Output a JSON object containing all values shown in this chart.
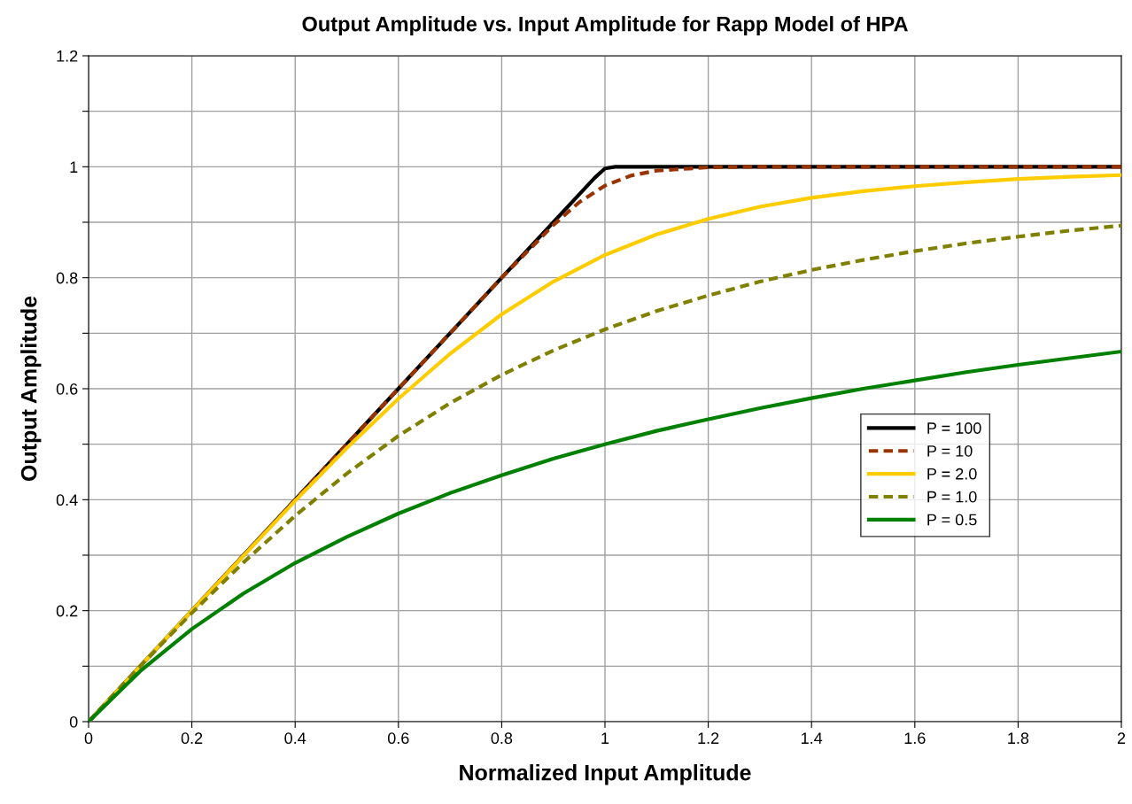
{
  "chart_data": {
    "type": "line",
    "title": "Output Amplitude vs. Input Amplitude for Rapp Model of HPA",
    "xlabel": "Normalized Input Amplitude",
    "ylabel": "Output Amplitude",
    "xlim": [
      0,
      2
    ],
    "xticks": [
      0,
      0.2,
      0.4,
      0.6,
      0.8,
      1,
      1.2,
      1.4,
      1.6,
      1.8,
      2
    ],
    "ylim": [
      0,
      1.2
    ],
    "yticks": [
      0,
      {
        "value": 0.1,
        "label": null
      },
      0.2,
      {
        "value": 0.3,
        "label": null
      },
      0.4,
      {
        "value": 0.5,
        "label": null
      },
      0.6,
      {
        "value": 0.7,
        "label": null
      },
      0.8,
      {
        "value": 0.9,
        "label": null
      },
      1,
      {
        "value": 1.1,
        "label": null
      },
      1.2
    ],
    "grid": true,
    "legend": "right",
    "marker": "none",
    "series": [
      {
        "name": "P = 100",
        "color": "#000000",
        "line_style": "solid",
        "x": [
          0,
          0.2,
          0.4,
          0.6,
          0.8,
          0.9,
          0.95,
          0.98,
          1.0,
          1.02,
          1.05,
          1.2,
          1.4,
          1.6,
          1.8,
          2.0
        ],
        "values": [
          0,
          0.2,
          0.4,
          0.6,
          0.8,
          0.9,
          0.95,
          0.98,
          0.997,
          1.0,
          1.0,
          1.0,
          1.0,
          1.0,
          1.0,
          1.0
        ]
      },
      {
        "name": "P = 10",
        "color": "#993300",
        "line_style": "dashed",
        "x": [
          0,
          0.2,
          0.4,
          0.6,
          0.8,
          0.9,
          0.95,
          1.0,
          1.05,
          1.1,
          1.2,
          1.3,
          1.4,
          1.6,
          1.8,
          2.0
        ],
        "values": [
          0,
          0.2,
          0.4,
          0.6,
          0.8,
          0.895,
          0.936,
          0.966,
          0.984,
          0.993,
          0.999,
          1.0,
          1.0,
          1.0,
          1.0,
          1.0
        ]
      },
      {
        "name": "P = 2.0",
        "color": "#ffcc00",
        "line_style": "solid",
        "x": [
          0,
          0.1,
          0.2,
          0.3,
          0.4,
          0.5,
          0.6,
          0.7,
          0.8,
          0.9,
          1.0,
          1.1,
          1.2,
          1.3,
          1.4,
          1.5,
          1.6,
          1.7,
          1.8,
          1.9,
          2.0
        ],
        "values": [
          0,
          0.1,
          0.2,
          0.299,
          0.398,
          0.493,
          0.582,
          0.663,
          0.734,
          0.793,
          0.841,
          0.878,
          0.906,
          0.928,
          0.944,
          0.956,
          0.965,
          0.972,
          0.978,
          0.982,
          0.985
        ]
      },
      {
        "name": "P = 1.0",
        "color": "#808000",
        "line_style": "dashed",
        "x": [
          0,
          0.1,
          0.2,
          0.3,
          0.4,
          0.5,
          0.6,
          0.7,
          0.8,
          0.9,
          1.0,
          1.1,
          1.2,
          1.3,
          1.4,
          1.5,
          1.6,
          1.7,
          1.8,
          1.9,
          2.0
        ],
        "values": [
          0,
          0.1,
          0.196,
          0.287,
          0.371,
          0.447,
          0.515,
          0.574,
          0.625,
          0.669,
          0.707,
          0.74,
          0.768,
          0.793,
          0.814,
          0.832,
          0.848,
          0.862,
          0.874,
          0.885,
          0.894
        ]
      },
      {
        "name": "P = 0.5",
        "color": "#008000",
        "line_style": "solid",
        "x": [
          0,
          0.1,
          0.2,
          0.3,
          0.4,
          0.5,
          0.6,
          0.7,
          0.8,
          0.9,
          1.0,
          1.1,
          1.2,
          1.3,
          1.4,
          1.5,
          1.6,
          1.7,
          1.8,
          1.9,
          2.0
        ],
        "values": [
          0,
          0.091,
          0.167,
          0.231,
          0.286,
          0.333,
          0.375,
          0.412,
          0.444,
          0.474,
          0.5,
          0.524,
          0.545,
          0.565,
          0.583,
          0.6,
          0.615,
          0.63,
          0.643,
          0.655,
          0.667
        ]
      }
    ]
  }
}
